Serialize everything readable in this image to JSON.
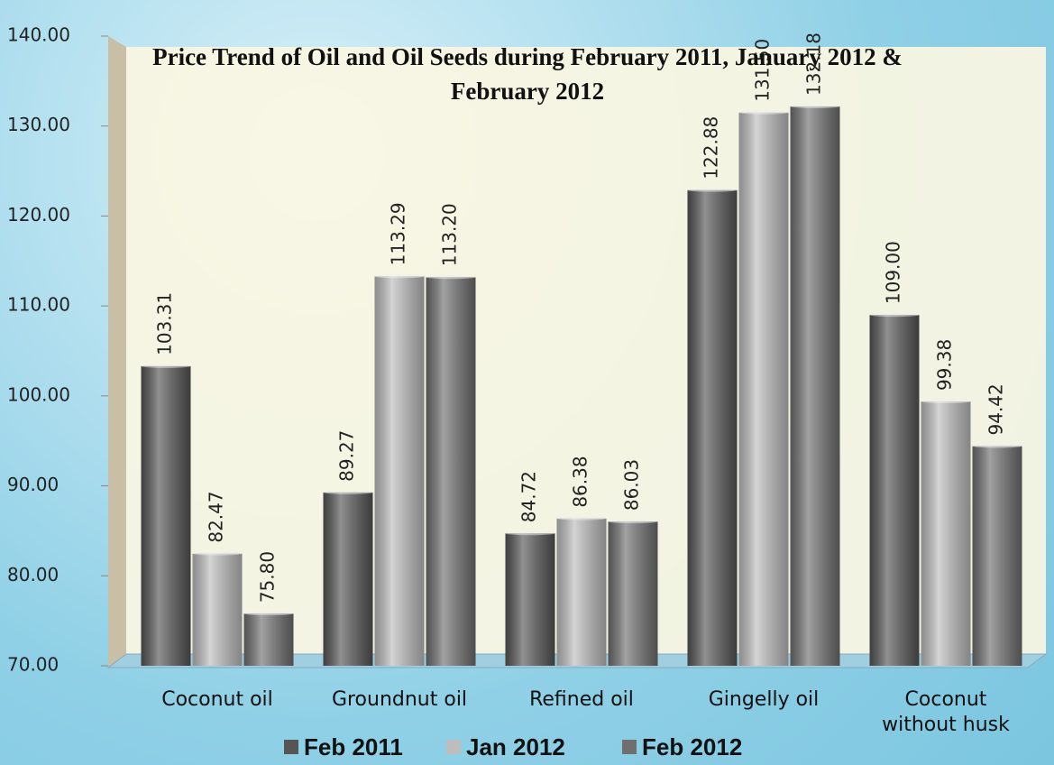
{
  "chart_data": {
    "type": "bar",
    "title": "Price Trend of Oil and Oil Seeds during February 2011, January 2012 & February 2012",
    "categories": [
      "Coconut oil",
      "Groundnut oil",
      "Refined oil",
      "Gingelly oil",
      "Coconut without husk"
    ],
    "series": [
      {
        "name": "Feb 2011",
        "color": "#555555",
        "values": [
          103.31,
          89.27,
          84.72,
          122.88,
          109.0
        ],
        "value_labels": [
          "103.31",
          "89.27",
          "84.72",
          "122.88",
          "109.00"
        ]
      },
      {
        "name": "Jan 2012",
        "color": "#bdbdbd",
        "values": [
          82.47,
          113.29,
          86.38,
          131.5,
          99.38
        ],
        "value_labels": [
          "82.47",
          "113.29",
          "86.38",
          "131.50",
          "99.38"
        ]
      },
      {
        "name": "Feb 2012",
        "color": "#6f6f6f",
        "values": [
          75.8,
          113.2,
          86.03,
          132.18,
          94.42
        ],
        "value_labels": [
          "75.80",
          "113.20",
          "86.03",
          "132.18",
          "94.42"
        ]
      }
    ],
    "ylim": [
      70,
      140
    ],
    "yticks": [
      {
        "value": 70,
        "label": "70.00"
      },
      {
        "value": 80,
        "label": "80.00"
      },
      {
        "value": 90,
        "label": "90.00"
      },
      {
        "value": 100,
        "label": "100.00"
      },
      {
        "value": 110,
        "label": "110.00"
      },
      {
        "value": 120,
        "label": "120.00"
      },
      {
        "value": 130,
        "label": "130.00"
      },
      {
        "value": 140,
        "label": "140.00"
      }
    ],
    "legend": "bottom"
  }
}
